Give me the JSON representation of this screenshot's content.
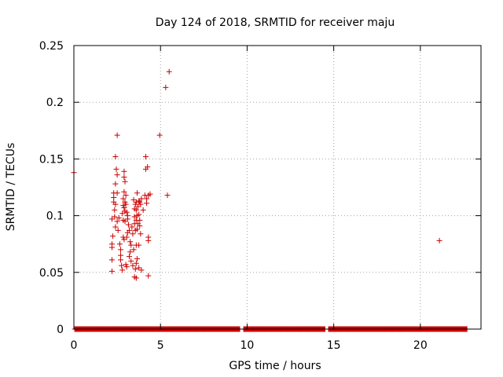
{
  "chart_data": {
    "type": "scatter",
    "title": "Day 124 of 2018, SRMTID for receiver maju",
    "xlabel": "GPS time / hours",
    "ylabel": "SRMTID / TECUs",
    "xlim": [
      0,
      23.5
    ],
    "ylim": [
      0,
      0.25
    ],
    "x_ticks": [
      0,
      5,
      10,
      15,
      20
    ],
    "x_tick_labels": [
      "0",
      "5",
      "10",
      "15",
      "20"
    ],
    "y_ticks": [
      0,
      0.05,
      0.1,
      0.15,
      0.2,
      0.25
    ],
    "y_tick_labels": [
      "0",
      "0.05",
      "0.1",
      "0.15",
      "0.2",
      "0.25"
    ],
    "grid": true,
    "marker": "+",
    "color": "#cc0000",
    "baseline": {
      "value": 0,
      "intervals": [
        [
          0.05,
          9.6
        ],
        [
          9.8,
          14.5
        ],
        [
          14.7,
          22.7
        ]
      ],
      "step_hours": 0.0333
    },
    "points": [
      [
        0.0,
        0.138
      ],
      [
        2.2,
        0.097
      ],
      [
        2.2,
        0.075
      ],
      [
        2.2,
        0.072
      ],
      [
        2.2,
        0.061
      ],
      [
        2.2,
        0.051
      ],
      [
        2.25,
        0.082
      ],
      [
        2.3,
        0.12
      ],
      [
        2.3,
        0.116
      ],
      [
        2.3,
        0.112
      ],
      [
        2.35,
        0.105
      ],
      [
        2.35,
        0.099
      ],
      [
        2.4,
        0.152
      ],
      [
        2.4,
        0.128
      ],
      [
        2.4,
        0.11
      ],
      [
        2.4,
        0.09
      ],
      [
        2.45,
        0.141
      ],
      [
        2.5,
        0.171
      ],
      [
        2.5,
        0.136
      ],
      [
        2.5,
        0.12
      ],
      [
        2.5,
        0.095
      ],
      [
        2.55,
        0.087
      ],
      [
        2.6,
        0.098
      ],
      [
        2.65,
        0.075
      ],
      [
        2.7,
        0.07
      ],
      [
        2.7,
        0.065
      ],
      [
        2.7,
        0.061
      ],
      [
        2.75,
        0.056
      ],
      [
        2.8,
        0.102
      ],
      [
        2.8,
        0.052
      ],
      [
        2.85,
        0.115
      ],
      [
        2.85,
        0.109
      ],
      [
        2.85,
        0.096
      ],
      [
        2.85,
        0.081
      ],
      [
        2.9,
        0.139
      ],
      [
        2.9,
        0.134
      ],
      [
        2.9,
        0.121
      ],
      [
        2.9,
        0.107
      ],
      [
        2.9,
        0.079
      ],
      [
        2.95,
        0.13
      ],
      [
        2.95,
        0.112
      ],
      [
        2.95,
        0.104
      ],
      [
        2.95,
        0.095
      ],
      [
        3.0,
        0.118
      ],
      [
        3.0,
        0.11
      ],
      [
        3.0,
        0.057
      ],
      [
        3.05,
        0.103
      ],
      [
        3.05,
        0.081
      ],
      [
        3.05,
        0.055
      ],
      [
        3.1,
        0.1
      ],
      [
        3.1,
        0.097
      ],
      [
        3.1,
        0.085
      ],
      [
        3.15,
        0.092
      ],
      [
        3.2,
        0.087
      ],
      [
        3.2,
        0.064
      ],
      [
        3.25,
        0.077
      ],
      [
        3.25,
        0.068
      ],
      [
        3.3,
        0.074
      ],
      [
        3.3,
        0.06
      ],
      [
        3.35,
        0.09
      ],
      [
        3.4,
        0.084
      ],
      [
        3.4,
        0.056
      ],
      [
        3.45,
        0.114
      ],
      [
        3.45,
        0.07
      ],
      [
        3.5,
        0.106
      ],
      [
        3.5,
        0.099
      ],
      [
        3.5,
        0.093
      ],
      [
        3.5,
        0.046
      ],
      [
        3.55,
        0.11
      ],
      [
        3.55,
        0.087
      ],
      [
        3.55,
        0.053
      ],
      [
        3.6,
        0.112
      ],
      [
        3.6,
        0.105
      ],
      [
        3.6,
        0.096
      ],
      [
        3.6,
        0.074
      ],
      [
        3.6,
        0.058
      ],
      [
        3.6,
        0.045
      ],
      [
        3.65,
        0.12
      ],
      [
        3.65,
        0.1
      ],
      [
        3.65,
        0.088
      ],
      [
        3.65,
        0.062
      ],
      [
        3.7,
        0.108
      ],
      [
        3.7,
        0.093
      ],
      [
        3.75,
        0.113
      ],
      [
        3.75,
        0.101
      ],
      [
        3.75,
        0.074
      ],
      [
        3.75,
        0.054
      ],
      [
        3.8,
        0.112
      ],
      [
        3.8,
        0.096
      ],
      [
        3.8,
        0.091
      ],
      [
        3.85,
        0.11
      ],
      [
        3.85,
        0.084
      ],
      [
        3.9,
        0.115
      ],
      [
        3.9,
        0.052
      ],
      [
        4.0,
        0.105
      ],
      [
        4.1,
        0.118
      ],
      [
        4.15,
        0.141
      ],
      [
        4.15,
        0.152
      ],
      [
        4.2,
        0.115
      ],
      [
        4.2,
        0.111
      ],
      [
        4.25,
        0.143
      ],
      [
        4.3,
        0.118
      ],
      [
        4.3,
        0.081
      ],
      [
        4.3,
        0.078
      ],
      [
        4.3,
        0.047
      ],
      [
        4.4,
        0.119
      ],
      [
        4.95,
        0.171
      ],
      [
        5.3,
        0.213
      ],
      [
        5.5,
        0.227
      ],
      [
        5.4,
        0.118
      ],
      [
        21.1,
        0.078
      ]
    ]
  }
}
